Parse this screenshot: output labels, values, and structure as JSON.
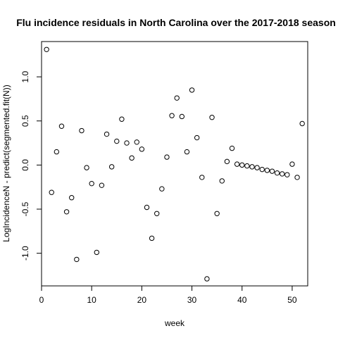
{
  "chart_data": {
    "type": "scatter",
    "title": "Flu incidence residuals in North Carolina over the 2017-2018 season",
    "xlabel": "week",
    "ylabel": "LogIncidenceN - predict(segmented.fit(N))",
    "xlim": [
      0,
      53.1
    ],
    "ylim": [
      -1.37,
      1.4
    ],
    "xticks": [
      0,
      10,
      20,
      30,
      40,
      50
    ],
    "xtick_labels": [
      "0",
      "10",
      "20",
      "30",
      "40",
      "50"
    ],
    "yticks": [
      -1.0,
      -0.5,
      0.0,
      0.5,
      1.0
    ],
    "ytick_labels": [
      "-1.0",
      "-0.5",
      "0.0",
      "0.5",
      "1.0"
    ],
    "grid": false,
    "series": [
      {
        "marker": "open-circle",
        "color": "#000000",
        "points": [
          {
            "x": 1,
            "y": 1.31
          },
          {
            "x": 2,
            "y": -0.31
          },
          {
            "x": 3,
            "y": 0.15
          },
          {
            "x": 4,
            "y": 0.44
          },
          {
            "x": 5,
            "y": -0.53
          },
          {
            "x": 6,
            "y": -0.37
          },
          {
            "x": 7,
            "y": -1.07
          },
          {
            "x": 8,
            "y": 0.39
          },
          {
            "x": 9,
            "y": -0.03
          },
          {
            "x": 10,
            "y": -0.21
          },
          {
            "x": 11,
            "y": -0.99
          },
          {
            "x": 12,
            "y": -0.23
          },
          {
            "x": 13,
            "y": 0.35
          },
          {
            "x": 14,
            "y": -0.02
          },
          {
            "x": 15,
            "y": 0.27
          },
          {
            "x": 16,
            "y": 0.52
          },
          {
            "x": 17,
            "y": 0.25
          },
          {
            "x": 18,
            "y": 0.08
          },
          {
            "x": 19,
            "y": 0.26
          },
          {
            "x": 20,
            "y": 0.18
          },
          {
            "x": 21,
            "y": -0.48
          },
          {
            "x": 22,
            "y": -0.83
          },
          {
            "x": 23,
            "y": -0.55
          },
          {
            "x": 24,
            "y": -0.27
          },
          {
            "x": 25,
            "y": 0.09
          },
          {
            "x": 26,
            "y": 0.56
          },
          {
            "x": 27,
            "y": 0.76
          },
          {
            "x": 28,
            "y": 0.55
          },
          {
            "x": 29,
            "y": 0.15
          },
          {
            "x": 30,
            "y": 0.85
          },
          {
            "x": 31,
            "y": 0.31
          },
          {
            "x": 32,
            "y": -0.14
          },
          {
            "x": 33,
            "y": -1.29
          },
          {
            "x": 34,
            "y": 0.54
          },
          {
            "x": 35,
            "y": -0.55
          },
          {
            "x": 36,
            "y": -0.18
          },
          {
            "x": 37,
            "y": 0.04
          },
          {
            "x": 38,
            "y": 0.19
          },
          {
            "x": 39,
            "y": 0.01
          },
          {
            "x": 40,
            "y": 0.0
          },
          {
            "x": 41,
            "y": -0.01
          },
          {
            "x": 42,
            "y": -0.02
          },
          {
            "x": 43,
            "y": -0.03
          },
          {
            "x": 44,
            "y": -0.05
          },
          {
            "x": 45,
            "y": -0.06
          },
          {
            "x": 46,
            "y": -0.07
          },
          {
            "x": 47,
            "y": -0.09
          },
          {
            "x": 48,
            "y": -0.1
          },
          {
            "x": 49,
            "y": -0.11
          },
          {
            "x": 50,
            "y": 0.01
          },
          {
            "x": 51,
            "y": -0.14
          },
          {
            "x": 52,
            "y": 0.47
          }
        ]
      }
    ]
  }
}
